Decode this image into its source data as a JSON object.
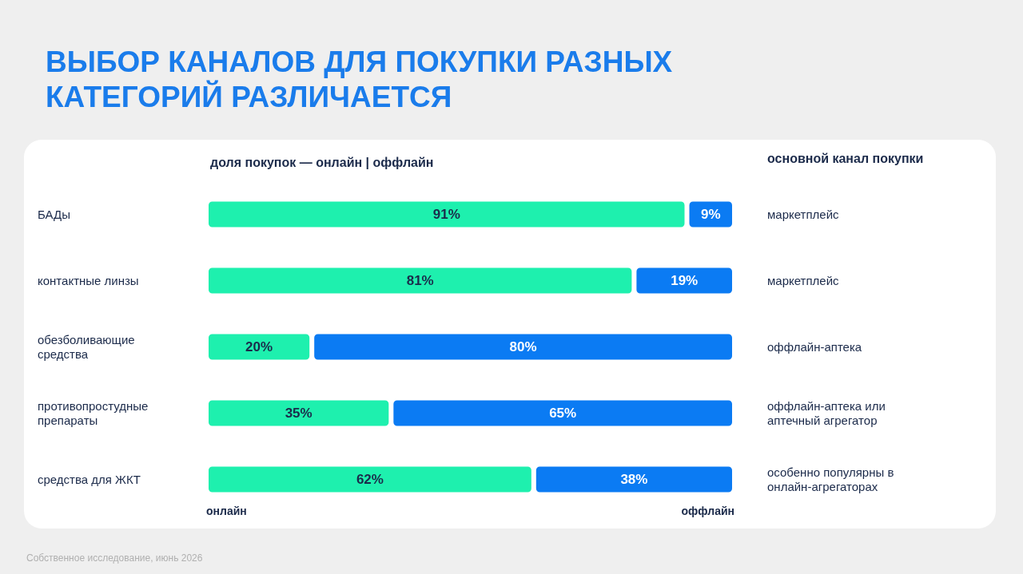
{
  "chart_data": {
    "type": "bar",
    "orientation": "horizontal",
    "stacked": true,
    "title": "ВЫБОР КАНАЛОВ ДЛЯ ПОКУПКИ РАЗНЫХ КАТЕГОРИЙ РАЗЛИЧАЕТСЯ",
    "subtitle": "доля покупок — онлайн | оффлайн",
    "categories": [
      "БАДы",
      "контактные линзы",
      "обезболивающие средства",
      "противопростудные препараты",
      "средства для ЖКТ"
    ],
    "series": [
      {
        "name": "онлайн",
        "color": "#1ef0ae",
        "values": [
          91,
          81,
          20,
          35,
          62
        ],
        "value_labels": [
          "91%",
          "81%",
          "20%",
          "35%",
          "62%"
        ]
      },
      {
        "name": "оффлайн",
        "color": "#0b7bf3",
        "values": [
          9,
          19,
          80,
          65,
          38
        ],
        "value_labels": [
          "9%",
          "19%",
          "80%",
          "65%",
          "38%"
        ]
      }
    ],
    "annotations": [
      "основной канал покупки",
      "маркетплейс",
      "маркетплейс",
      "оффлайн-аптека",
      "оффлайн-аптека или аптечный агрегатор",
      "особенно популярны в онлайн-агрегаторах",
      "Собственное исследование, июнь 2026"
    ],
    "legend": false,
    "tick_labels": "y"
  }
}
